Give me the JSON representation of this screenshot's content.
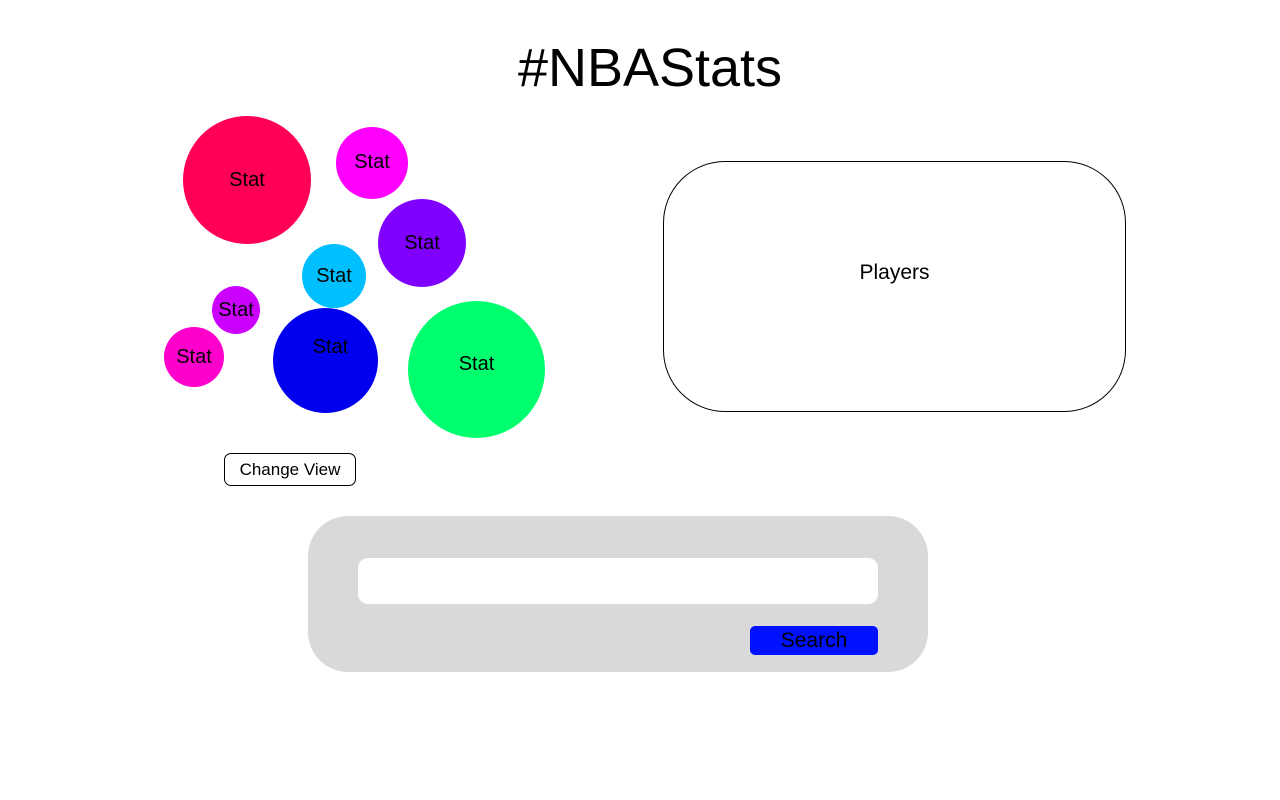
{
  "header": {
    "title": "#NBAStats"
  },
  "stats": {
    "bubbles": [
      {
        "label": "Stat",
        "color": "#ff0055"
      },
      {
        "label": "Stat",
        "color": "#ff00ff"
      },
      {
        "label": "Stat",
        "color": "#8000ff"
      },
      {
        "label": "Stat",
        "color": "#00bfff"
      },
      {
        "label": "Stat",
        "color": "#cc00ff"
      },
      {
        "label": "Stat",
        "color": "#ff00cc"
      },
      {
        "label": "Stat",
        "color": "#0000ee"
      },
      {
        "label": "Stat",
        "color": "#00ff6e"
      }
    ],
    "change_view_label": "Change View"
  },
  "players": {
    "label": "Players"
  },
  "search": {
    "input_value": "",
    "placeholder": "",
    "button_label": "Search"
  }
}
